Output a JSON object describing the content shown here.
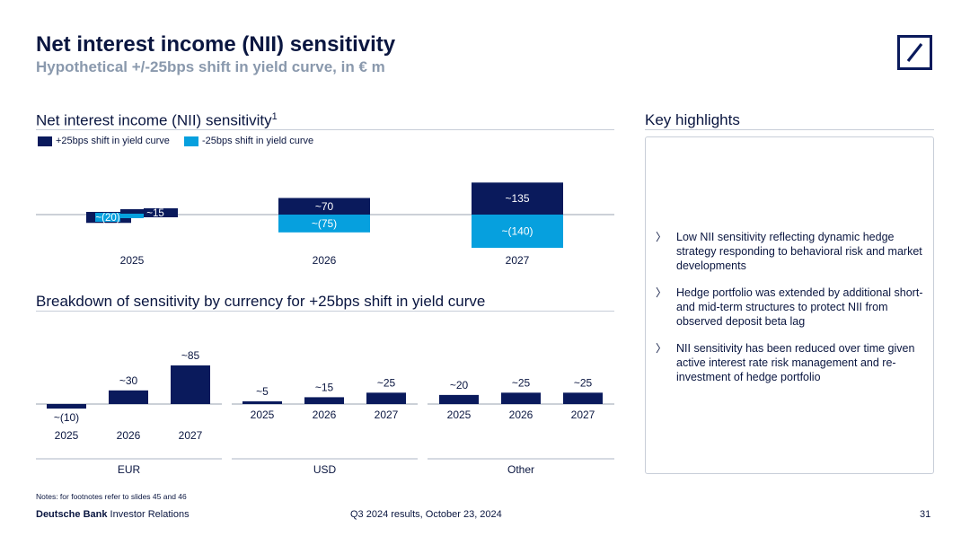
{
  "header": {
    "title": "Net interest income (NII) sensitivity",
    "subtitle": "Hypothetical +/-25bps shift in yield curve, in € m"
  },
  "nii_section": {
    "title": "Net interest income (NII) sensitivity",
    "footnote_marker": "1",
    "legend": [
      {
        "label": "+25bps shift in yield curve",
        "color": "#0a1a5c"
      },
      {
        "label": "-25bps shift in yield curve",
        "color": "#06a0de"
      }
    ]
  },
  "breakdown_section": {
    "title": "Breakdown of sensitivity by currency for +25bps shift in yield curve"
  },
  "highlights": {
    "title": "Key highlights",
    "items": [
      "Low NII sensitivity reflecting dynamic hedge strategy responding to behavioral risk and market developments",
      "Hedge portfolio was extended by additional short- and mid-term structures to protect NII from observed deposit beta lag",
      "NII sensitivity has been reduced over time given active interest rate risk management and re-investment of hedge portfolio"
    ],
    "arrow": "〉"
  },
  "colors": {
    "navy": "#0a1a5c",
    "cyan": "#06a0de",
    "rule": "#c8ced8"
  },
  "chart_data": [
    {
      "type": "bar",
      "title": "Net interest income (NII) sensitivity",
      "categories": [
        "2025",
        "2026",
        "2027"
      ],
      "series": [
        {
          "name": "+25bps shift in yield curve",
          "values": [
            15,
            70,
            135
          ],
          "labels": [
            "~15",
            "~70",
            "~135"
          ]
        },
        {
          "name": "-25bps shift in yield curve",
          "values": [
            -20,
            -75,
            -140
          ],
          "labels": [
            "~(20)",
            "~(75)",
            "~(140)"
          ]
        }
      ],
      "ylim": [
        -140,
        135
      ]
    },
    {
      "type": "bar",
      "title": "Breakdown of sensitivity by currency for +25bps shift in yield curve",
      "groups": [
        {
          "name": "EUR",
          "categories": [
            "2025",
            "2026",
            "2027"
          ],
          "values": [
            -10,
            30,
            85
          ],
          "labels": [
            "~(10)",
            "~30",
            "~85"
          ]
        },
        {
          "name": "USD",
          "categories": [
            "2025",
            "2026",
            "2027"
          ],
          "values": [
            5,
            15,
            25
          ],
          "labels": [
            "~5",
            "~15",
            "~25"
          ]
        },
        {
          "name": "Other",
          "categories": [
            "2025",
            "2026",
            "2027"
          ],
          "values": [
            20,
            25,
            25
          ],
          "labels": [
            "~20",
            "~25",
            "~25"
          ]
        }
      ],
      "ylim": [
        -10,
        85
      ]
    }
  ],
  "footer": {
    "notes": "Notes: for footnotes refer to slides 45 and 46",
    "brand_bold": "Deutsche Bank",
    "brand_rest": " Investor Relations",
    "event": "Q3 2024 results, October 23, 2024",
    "page": "31"
  }
}
